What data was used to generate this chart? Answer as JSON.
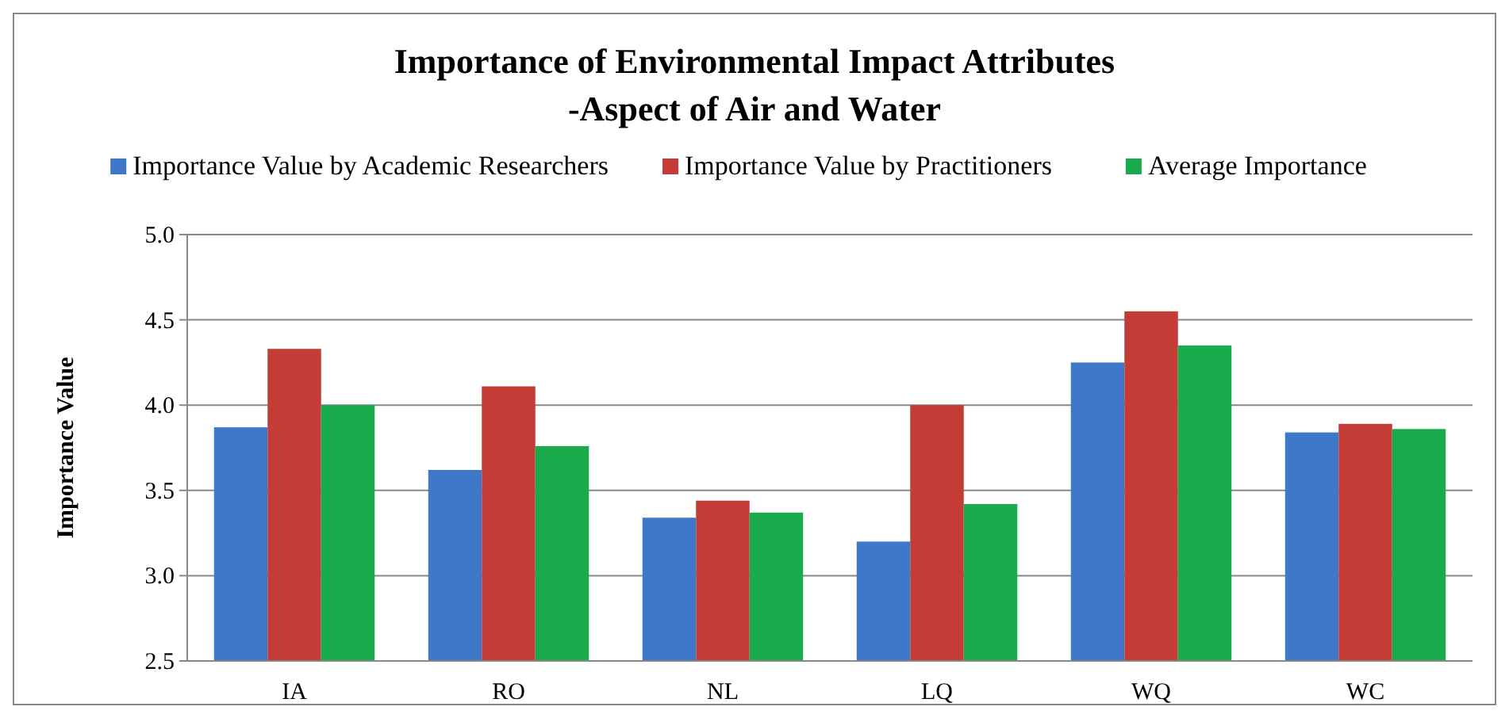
{
  "chart_data": {
    "type": "bar",
    "title": "Importance of Environmental Impact Attributes",
    "subtitle": "-Aspect of Air and Water",
    "ylabel": "Importance Value",
    "categories": [
      "IA",
      "RO",
      "NL",
      "LQ",
      "WQ",
      "WC"
    ],
    "series": [
      {
        "name": "Importance Value by Academic Researchers",
        "color": "#3f78c8",
        "values": [
          3.87,
          3.62,
          3.34,
          3.2,
          4.25,
          3.84
        ]
      },
      {
        "name": "Importance Value by Practitioners",
        "color": "#c43c36",
        "values": [
          4.33,
          4.11,
          3.44,
          4.0,
          4.55,
          3.89
        ]
      },
      {
        "name": "Average Importance",
        "color": "#1aab4c",
        "values": [
          4.0,
          3.76,
          3.37,
          3.42,
          4.35,
          3.86
        ]
      }
    ],
    "ylim": [
      2.5,
      5.0
    ],
    "yticks": [
      {
        "value": 2.5,
        "label": "2.5"
      },
      {
        "value": 3.0,
        "label": "3.0"
      },
      {
        "value": 3.5,
        "label": "3.5"
      },
      {
        "value": 4.0,
        "label": "4.0"
      },
      {
        "value": 4.5,
        "label": "4.5"
      },
      {
        "value": 5.0,
        "label": "5.0"
      }
    ],
    "grid": "y",
    "legend": "top"
  }
}
